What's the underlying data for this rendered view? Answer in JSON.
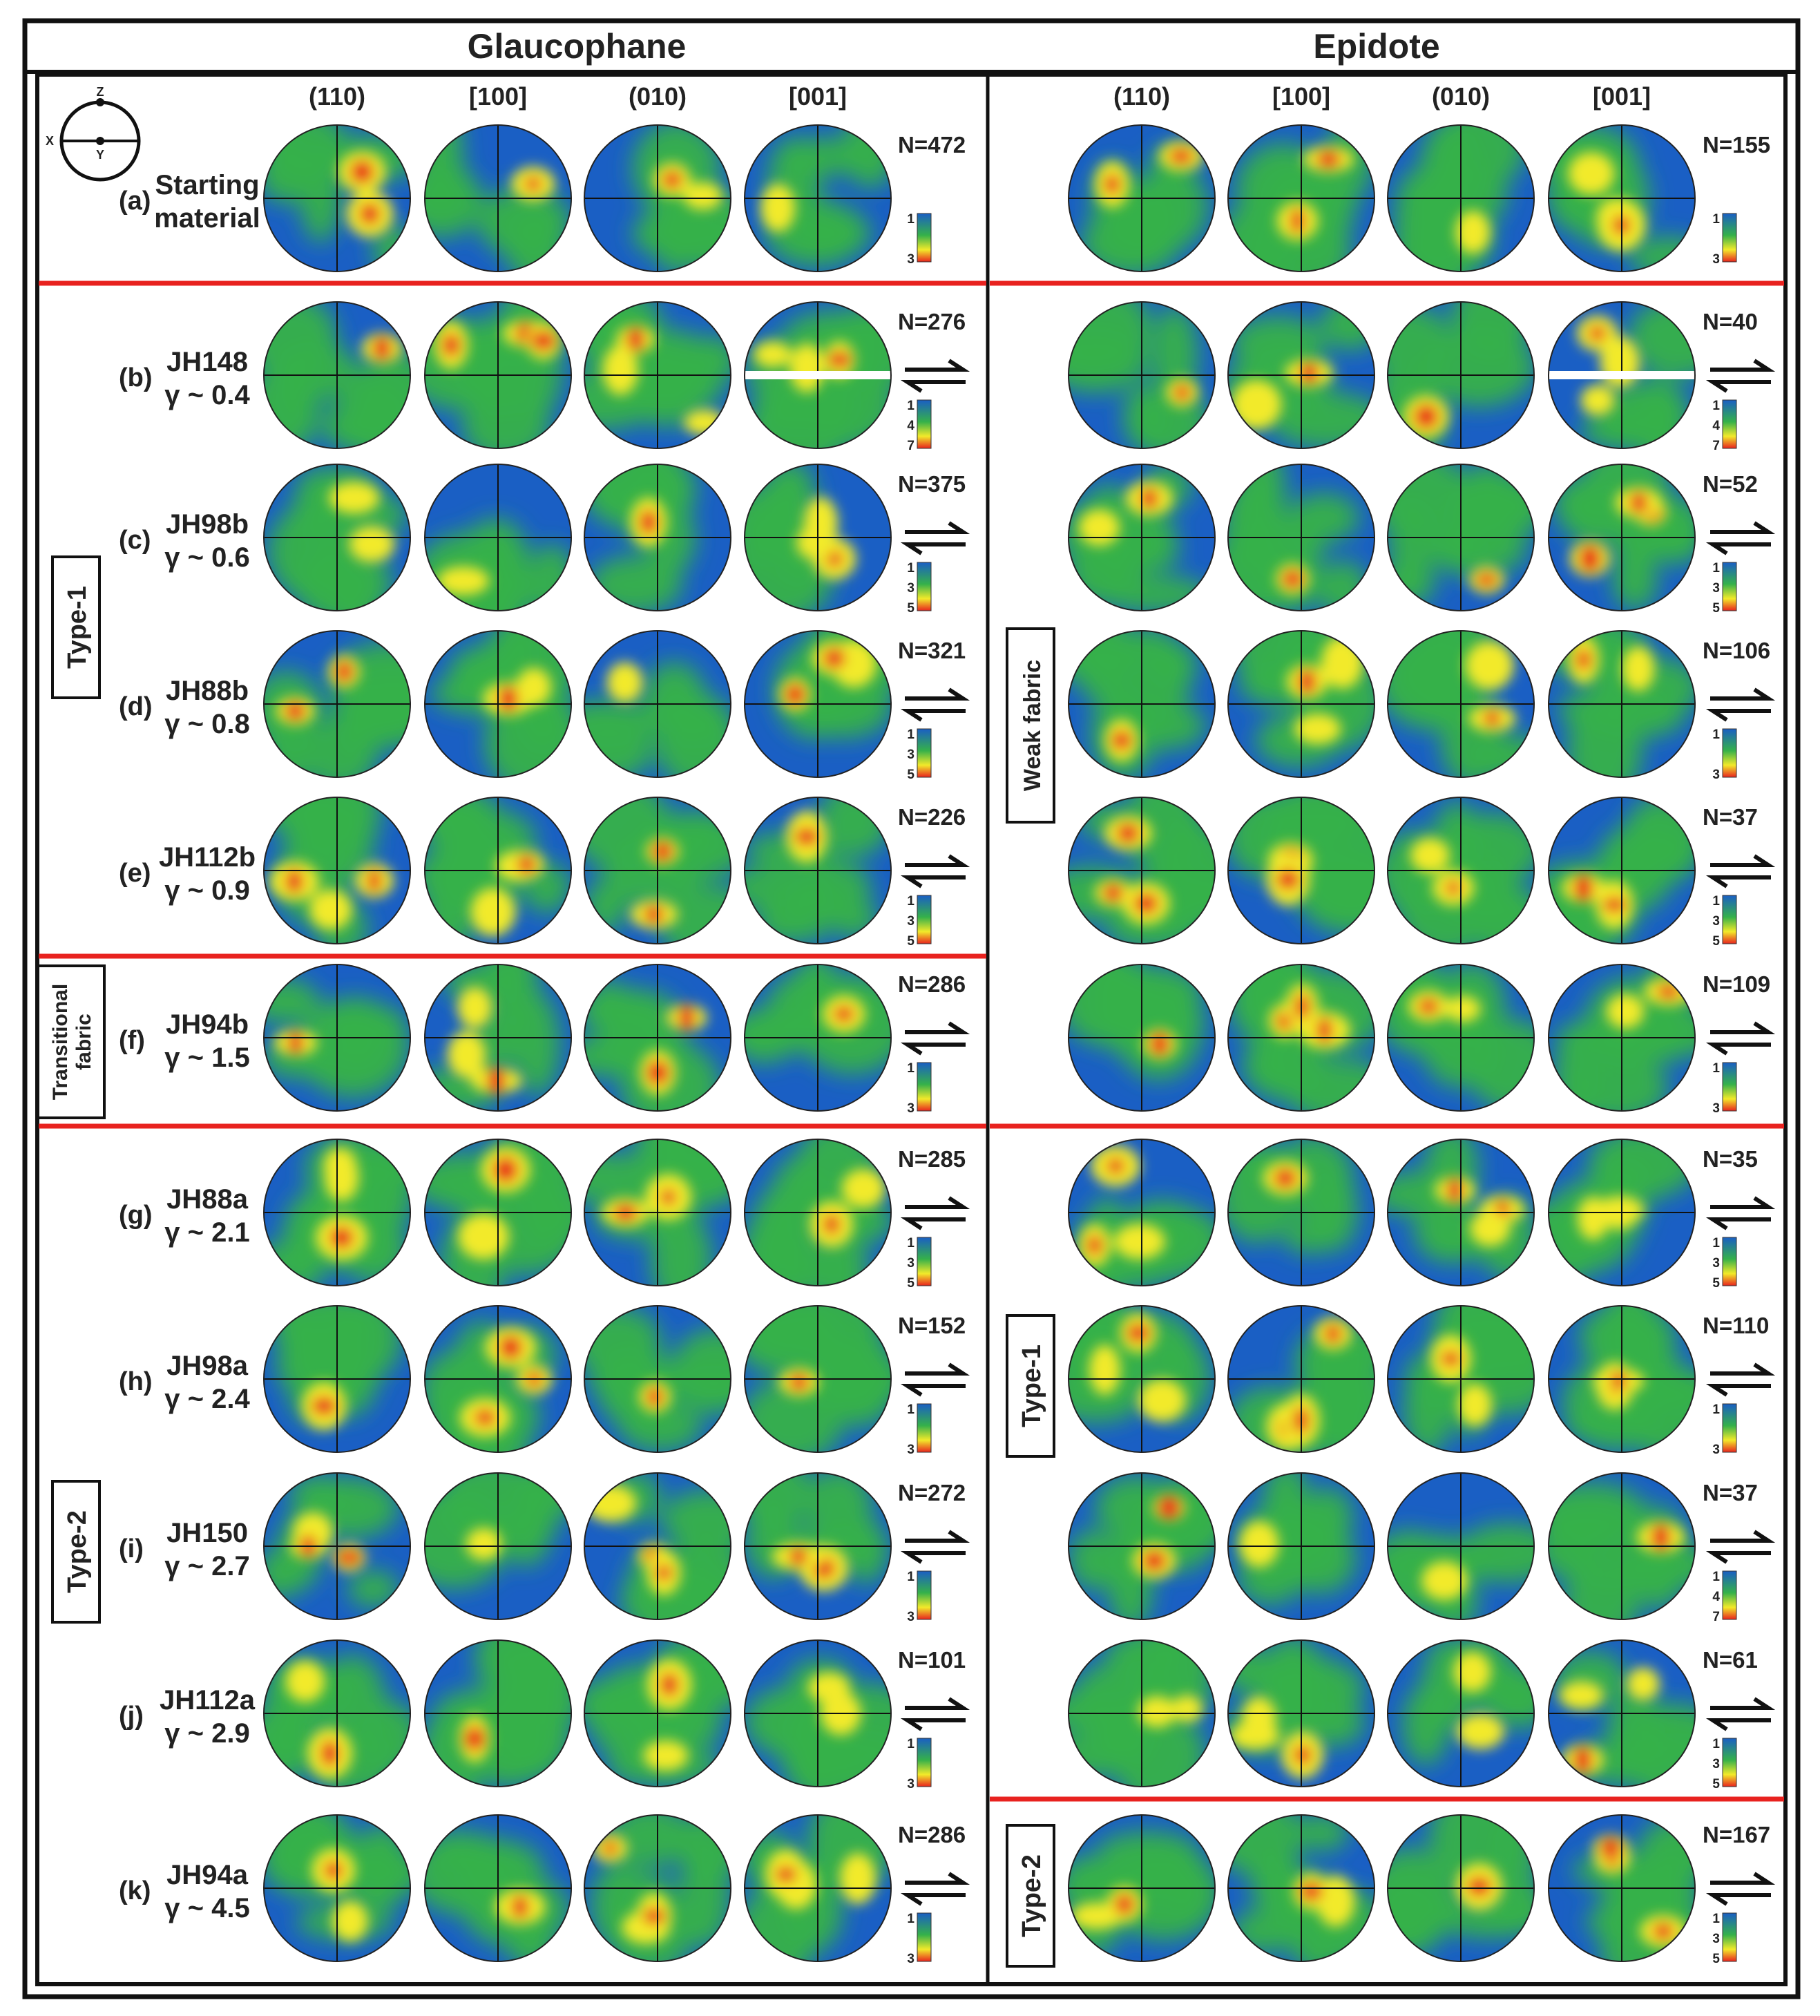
{
  "titles": {
    "glaucophane": "Glaucophane",
    "epidote": "Epidote"
  },
  "column_headers": [
    "(110)",
    "[100]",
    "(010)",
    "[001]"
  ],
  "key": {
    "z": "Z",
    "x": "X",
    "y": "Y"
  },
  "glaucophane_rows": [
    {
      "id": "a",
      "label": "(a)",
      "line1": "Starting",
      "line2": "material",
      "n": "N=472",
      "scale": [
        "1",
        "3"
      ],
      "arrows": false
    },
    {
      "id": "b",
      "label": "(b)",
      "line1": "JH148",
      "line2": "γ ~ 0.4",
      "n": "N=276",
      "scale": [
        "1",
        "4",
        "7"
      ],
      "arrows": true
    },
    {
      "id": "c",
      "label": "(c)",
      "line1": "JH98b",
      "line2": "γ ~ 0.6",
      "n": "N=375",
      "scale": [
        "1",
        "3",
        "5"
      ],
      "arrows": true
    },
    {
      "id": "d",
      "label": "(d)",
      "line1": "JH88b",
      "line2": "γ ~ 0.8",
      "n": "N=321",
      "scale": [
        "1",
        "3",
        "5"
      ],
      "arrows": true
    },
    {
      "id": "e",
      "label": "(e)",
      "line1": "JH112b",
      "line2": "γ ~ 0.9",
      "n": "N=226",
      "scale": [
        "1",
        "3",
        "5"
      ],
      "arrows": true
    },
    {
      "id": "f",
      "label": "(f)",
      "line1": "JH94b",
      "line2": "γ ~ 1.5",
      "n": "N=286",
      "scale": [
        "1",
        "3"
      ],
      "arrows": true
    },
    {
      "id": "g",
      "label": "(g)",
      "line1": "JH88a",
      "line2": "γ ~ 2.1",
      "n": "N=285",
      "scale": [
        "1",
        "3",
        "5"
      ],
      "arrows": true
    },
    {
      "id": "h",
      "label": "(h)",
      "line1": "JH98a",
      "line2": "γ ~ 2.4",
      "n": "N=152",
      "scale": [
        "1",
        "3"
      ],
      "arrows": true
    },
    {
      "id": "i",
      "label": "(i)",
      "line1": "JH150",
      "line2": "γ ~ 2.7",
      "n": "N=272",
      "scale": [
        "1",
        "3"
      ],
      "arrows": true
    },
    {
      "id": "j",
      "label": "(j)",
      "line1": "JH112a",
      "line2": "γ ~ 2.9",
      "n": "N=101",
      "scale": [
        "1",
        "3"
      ],
      "arrows": true
    },
    {
      "id": "k",
      "label": "(k)",
      "line1": "JH94a",
      "line2": "γ ~ 4.5",
      "n": "N=286",
      "scale": [
        "1",
        "3"
      ],
      "arrows": true
    }
  ],
  "epidote_rows": [
    {
      "id": "a",
      "n": "N=155",
      "scale": [
        "1",
        "3"
      ],
      "arrows": false
    },
    {
      "id": "b",
      "n": "N=40",
      "scale": [
        "1",
        "4",
        "7"
      ],
      "arrows": true
    },
    {
      "id": "c",
      "n": "N=52",
      "scale": [
        "1",
        "3",
        "5"
      ],
      "arrows": true
    },
    {
      "id": "d",
      "n": "N=106",
      "scale": [
        "1",
        "3"
      ],
      "arrows": true
    },
    {
      "id": "e",
      "n": "N=37",
      "scale": [
        "1",
        "3",
        "5"
      ],
      "arrows": true
    },
    {
      "id": "f",
      "n": "N=109",
      "scale": [
        "1",
        "3"
      ],
      "arrows": true
    },
    {
      "id": "g",
      "n": "N=35",
      "scale": [
        "1",
        "3",
        "5"
      ],
      "arrows": true
    },
    {
      "id": "h",
      "n": "N=110",
      "scale": [
        "1",
        "3"
      ],
      "arrows": true
    },
    {
      "id": "i",
      "n": "N=37",
      "scale": [
        "1",
        "4",
        "7"
      ],
      "arrows": true
    },
    {
      "id": "j",
      "n": "N=61",
      "scale": [
        "1",
        "3",
        "5"
      ],
      "arrows": true
    },
    {
      "id": "k",
      "n": "N=167",
      "scale": [
        "1",
        "3",
        "5"
      ],
      "arrows": true
    }
  ],
  "group_labels": {
    "glaucophane_type1": "Type-1",
    "glaucophane_transitional_line1": "Transitional",
    "glaucophane_transitional_line2": "fabric",
    "glaucophane_type2": "Type-2",
    "epidote_weak": "Weak fabric",
    "epidote_type1": "Type-1",
    "epidote_type2": "Type-2"
  },
  "colors": {
    "low": "#1a5fc4",
    "mid": "#35b14a",
    "high_yellow": "#f2ea2a",
    "high_red": "#e8231e",
    "separator": "#e8221f",
    "frame": "#111111"
  }
}
